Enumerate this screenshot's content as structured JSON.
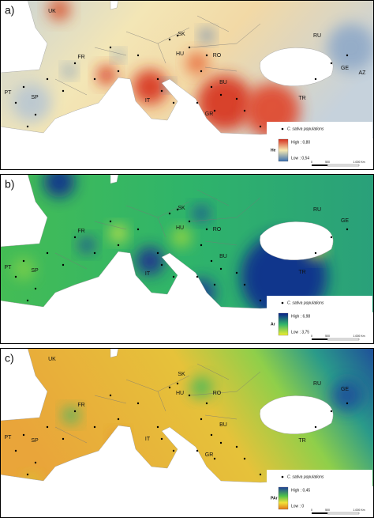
{
  "panels": [
    {
      "label": "a)",
      "variable": "He",
      "high": "High : 0,80",
      "low": "Low : 0,54",
      "legend": "C. sativa populations",
      "scale": [
        "0",
        "500",
        "1.000 Km"
      ],
      "countries": [
        "UK",
        "FR",
        "SK",
        "HU",
        "RO",
        "RU",
        "GE",
        "AZ",
        "PT",
        "SP",
        "IT",
        "BU",
        "GR",
        "TR"
      ]
    },
    {
      "label": "b)",
      "variable": "Ar",
      "high": "High : 6,98",
      "low": "Low : 3,75",
      "legend": "C. sativa populations",
      "scale": [
        "0",
        "500",
        "1.000 Km"
      ],
      "countries": [
        "FR",
        "SK",
        "HU",
        "RO",
        "RU",
        "GE",
        "PT",
        "SP",
        "IT",
        "BU",
        "TR"
      ]
    },
    {
      "label": "c)",
      "variable": "PAr",
      "high": "High : 0,45",
      "low": "Low : 0",
      "legend": "C. sativa populations",
      "scale": [
        "0",
        "500",
        "1.000 Km"
      ],
      "countries": [
        "UK",
        "FR",
        "SK",
        "HU",
        "RO",
        "RU",
        "GE",
        "PT",
        "SP",
        "IT",
        "BU",
        "GR",
        "TR"
      ]
    }
  ]
}
